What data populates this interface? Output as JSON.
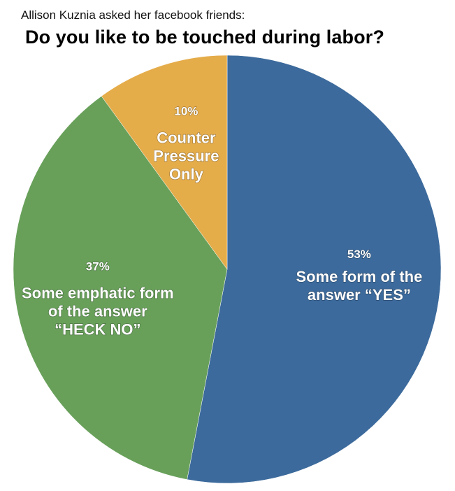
{
  "header": {
    "subtitle": "Allison Kuznia asked her facebook friends:",
    "title": "Do you like to be touched during labor?"
  },
  "chart_data": {
    "type": "pie",
    "title": "Do you like to be touched during labor?",
    "subtitle": "Allison Kuznia asked her facebook friends:",
    "legend": "none",
    "slices": [
      {
        "percent_label": "53%",
        "value": 53,
        "label_lines": [
          "Some form of the",
          "answer “YES”"
        ],
        "color": "#3c6a9c"
      },
      {
        "percent_label": "37%",
        "value": 37,
        "label_lines": [
          "Some emphatic form",
          "of the answer",
          "“HECK NO”"
        ],
        "color": "#68a05a"
      },
      {
        "percent_label": "10%",
        "value": 10,
        "label_lines": [
          "Counter",
          "Pressure",
          "Only"
        ],
        "color": "#e5ac4a"
      }
    ]
  }
}
